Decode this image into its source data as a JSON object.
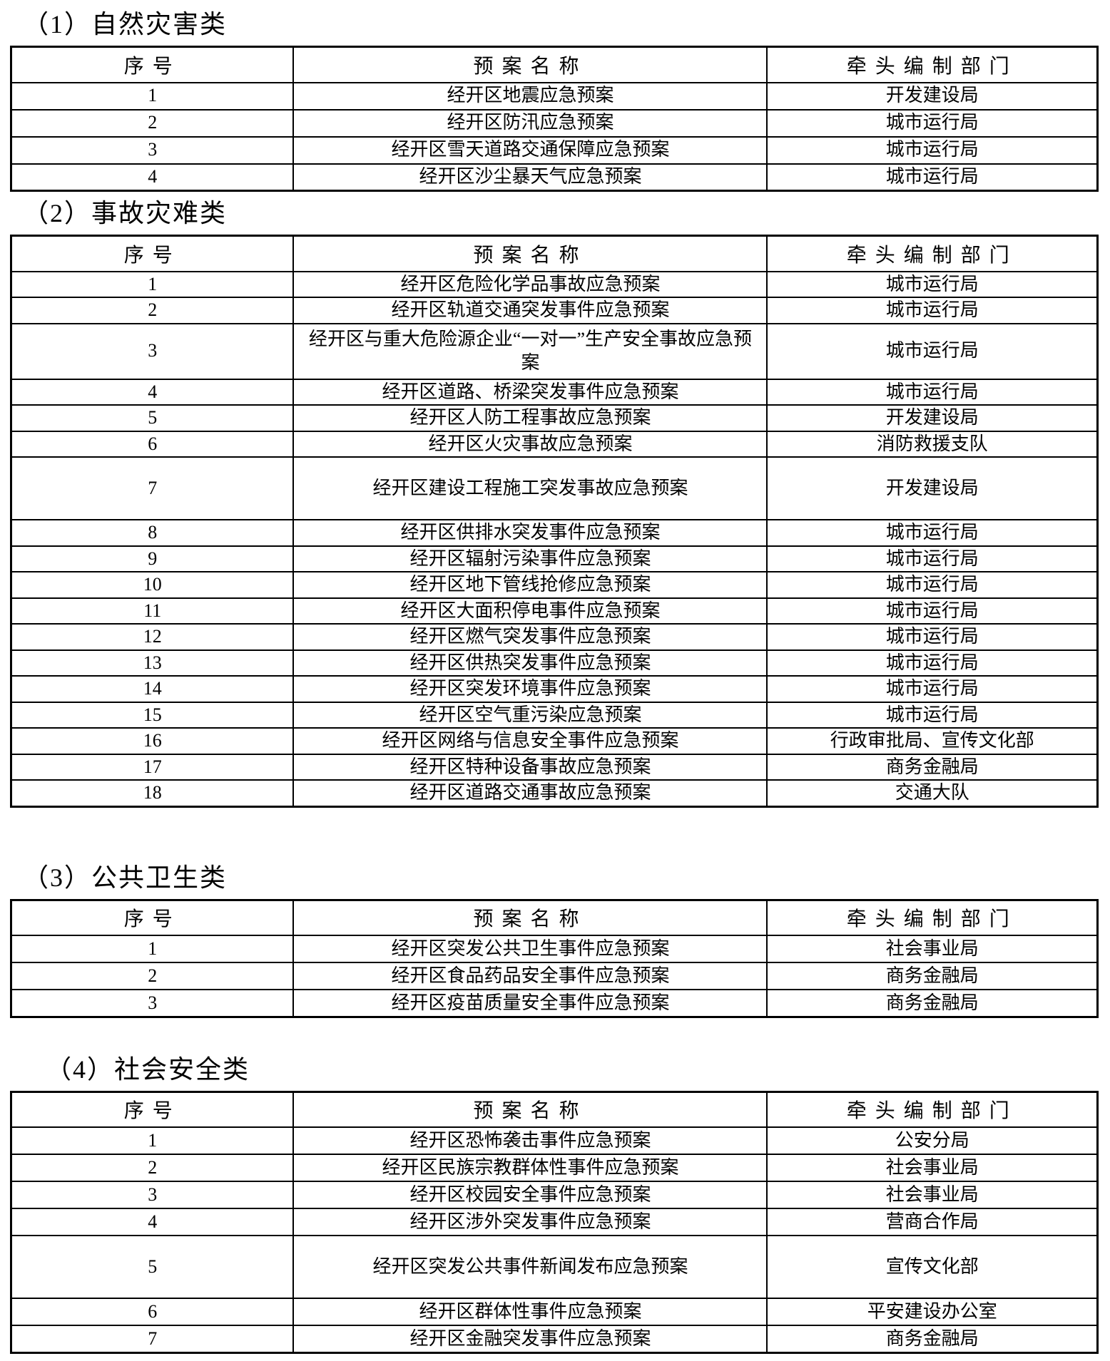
{
  "columns": [
    "序号",
    "预案名称",
    "牵头编制部门"
  ],
  "sections": [
    {
      "title": "（1）自然灾害类",
      "rows": [
        {
          "no": "1",
          "name": "经开区地震应急预案",
          "dept": "开发建设局"
        },
        {
          "no": "2",
          "name": "经开区防汛应急预案",
          "dept": "城市运行局"
        },
        {
          "no": "3",
          "name": "经开区雪天道路交通保障应急预案",
          "dept": "城市运行局"
        },
        {
          "no": "4",
          "name": "经开区沙尘暴天气应急预案",
          "dept": "城市运行局"
        }
      ]
    },
    {
      "title": "（2）事故灾难类",
      "rows": [
        {
          "no": "1",
          "name": "经开区危险化学品事故应急预案",
          "dept": "城市运行局"
        },
        {
          "no": "2",
          "name": "经开区轨道交通突发事件应急预案",
          "dept": "城市运行局"
        },
        {
          "no": "3",
          "name": "经开区与重大危险源企业“一对一”生产安全事故应急预案",
          "dept": "城市运行局",
          "tall": true
        },
        {
          "no": "4",
          "name": "经开区道路、桥梁突发事件应急预案",
          "dept": "城市运行局"
        },
        {
          "no": "5",
          "name": "经开区人防工程事故应急预案",
          "dept": "开发建设局"
        },
        {
          "no": "6",
          "name": "经开区火灾事故应急预案",
          "dept": "消防救援支队"
        },
        {
          "no": "7",
          "name": "经开区建设工程施工突发事故应急预案",
          "dept": "开发建设局",
          "tall2": true
        },
        {
          "no": "8",
          "name": "经开区供排水突发事件应急预案",
          "dept": "城市运行局"
        },
        {
          "no": "9",
          "name": "经开区辐射污染事件应急预案",
          "dept": "城市运行局"
        },
        {
          "no": "10",
          "name": "经开区地下管线抢修应急预案",
          "dept": "城市运行局"
        },
        {
          "no": "11",
          "name": "经开区大面积停电事件应急预案",
          "dept": "城市运行局"
        },
        {
          "no": "12",
          "name": "经开区燃气突发事件应急预案",
          "dept": "城市运行局"
        },
        {
          "no": "13",
          "name": "经开区供热突发事件应急预案",
          "dept": "城市运行局"
        },
        {
          "no": "14",
          "name": "经开区突发环境事件应急预案",
          "dept": "城市运行局"
        },
        {
          "no": "15",
          "name": "经开区空气重污染应急预案",
          "dept": "城市运行局"
        },
        {
          "no": "16",
          "name": "经开区网络与信息安全事件应急预案",
          "dept": "行政审批局、宣传文化部"
        },
        {
          "no": "17",
          "name": "经开区特种设备事故应急预案",
          "dept": "商务金融局"
        },
        {
          "no": "18",
          "name": "经开区道路交通事故应急预案",
          "dept": "交通大队"
        }
      ]
    },
    {
      "title": "（3）公共卫生类",
      "rows": [
        {
          "no": "1",
          "name": "经开区突发公共卫生事件应急预案",
          "dept": "社会事业局"
        },
        {
          "no": "2",
          "name": "经开区食品药品安全事件应急预案",
          "dept": "商务金融局"
        },
        {
          "no": "3",
          "name": "经开区疫苗质量安全事件应急预案",
          "dept": "商务金融局"
        }
      ]
    },
    {
      "title": "（4）社会安全类",
      "rows": [
        {
          "no": "1",
          "name": "经开区恐怖袭击事件应急预案",
          "dept": "公安分局"
        },
        {
          "no": "2",
          "name": "经开区民族宗教群体性事件应急预案",
          "dept": "社会事业局"
        },
        {
          "no": "3",
          "name": "经开区校园安全事件应急预案",
          "dept": "社会事业局"
        },
        {
          "no": "4",
          "name": "经开区涉外突发事件应急预案",
          "dept": "营商合作局"
        },
        {
          "no": "5",
          "name": "经开区突发公共事件新闻发布应急预案",
          "dept": "宣传文化部",
          "tall2": true
        },
        {
          "no": "6",
          "name": "经开区群体性事件应急预案",
          "dept": "平安建设办公室"
        },
        {
          "no": "7",
          "name": "经开区金融突发事件应急预案",
          "dept": "商务金融局"
        }
      ]
    }
  ]
}
